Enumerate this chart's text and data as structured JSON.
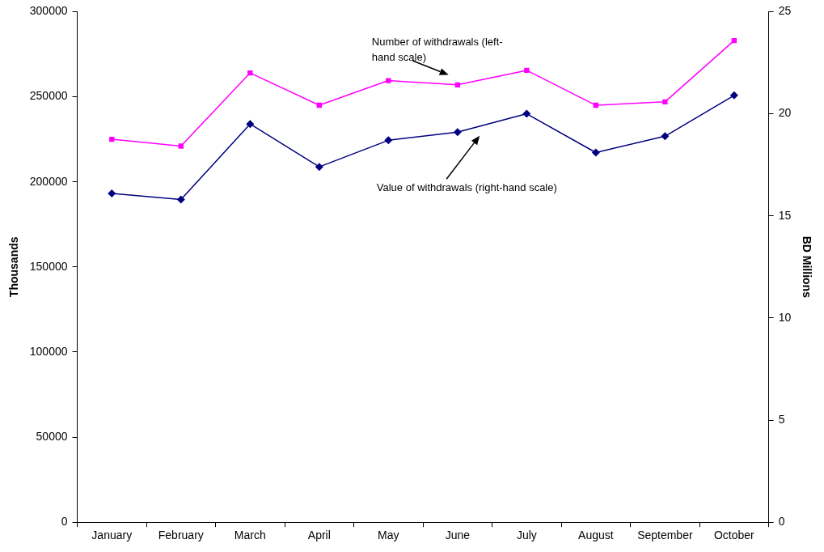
{
  "chart_data": {
    "type": "line",
    "ylabel": "Thousands",
    "y2label": "BD Millions",
    "categories": [
      "January",
      "February",
      "March",
      "April",
      "May",
      "June",
      "July",
      "August",
      "September",
      "October"
    ],
    "series": [
      {
        "color": "#ff00ff",
        "marker": "square",
        "values": [
          225000,
          221000,
          264000,
          245000,
          259500,
          257000,
          265500,
          245000,
          247000,
          283000
        ]
      },
      {
        "color": "#000080",
        "marker": "diamond",
        "axis": "y2",
        "values": [
          16.1,
          15.8,
          19.5,
          17.4,
          18.7,
          19.1,
          20.0,
          18.1,
          18.9,
          20.9
        ]
      }
    ],
    "ylim": [
      0,
      300000
    ],
    "yticks": [
      0,
      50000,
      100000,
      150000,
      200000,
      250000,
      300000
    ],
    "y2lim": [
      0,
      25
    ],
    "y2ticks": [
      0,
      5,
      10,
      15,
      20,
      25
    ],
    "annotations": [
      "Number of withdrawals (left-hand scale)",
      "Value of withdrawals (right-hand scale)"
    ],
    "grid": false,
    "legend": false
  }
}
